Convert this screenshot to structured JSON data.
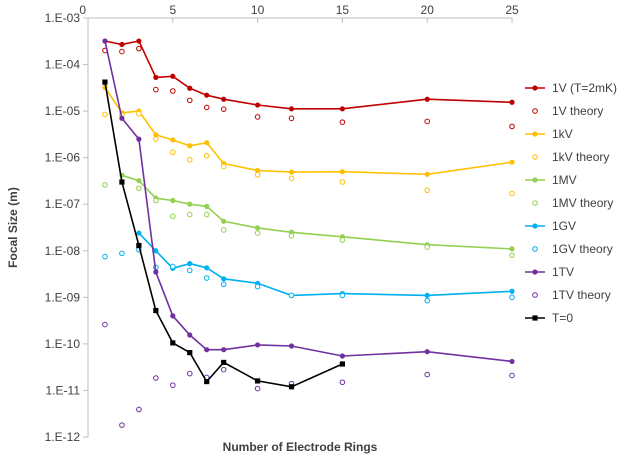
{
  "chart_data": {
    "type": "line",
    "title": "",
    "xlabel": "Number of Electrode Rings",
    "ylabel": "Focal Size (m)",
    "x_ticks": [
      "0",
      "5",
      "10",
      "15",
      "20",
      "25"
    ],
    "y_ticks": [
      "1.E-03",
      "1.E-04",
      "1.E-05",
      "1.E-06",
      "1.E-07",
      "1.E-08",
      "1.E-09",
      "1.E-10",
      "1.E-11",
      "1.E-12"
    ],
    "xlim": [
      0,
      25
    ],
    "ylim_log10": [
      -12,
      -3
    ],
    "y_scale": "log",
    "x_axis_position": "top",
    "grid": false,
    "legend_position": "right",
    "series": [
      {
        "name": "1V (T=2mK)",
        "color": "#C00000",
        "style": "line-filled",
        "x": [
          1,
          2,
          3,
          4,
          5,
          6,
          7,
          8,
          10,
          12,
          15,
          20,
          25
        ],
        "y": [
          0.00032,
          0.00027,
          0.00032,
          5.3e-05,
          5.6e-05,
          3.1e-05,
          2.2e-05,
          1.8e-05,
          1.35e-05,
          1.12e-05,
          1.12e-05,
          1.8e-05,
          1.55e-05
        ]
      },
      {
        "name": "1V theory",
        "color": "#C00000",
        "style": "marker-hollow",
        "x": [
          1,
          2,
          3,
          4,
          5,
          6,
          7,
          8,
          10,
          12,
          15,
          20,
          25
        ],
        "y": [
          0.0002,
          0.00019,
          0.00022,
          2.9e-05,
          2.7e-05,
          1.7e-05,
          1.2e-05,
          1.1e-05,
          7.5e-06,
          7e-06,
          5.8e-06,
          6e-06,
          4.7e-06
        ]
      },
      {
        "name": "1kV",
        "color": "#FFC000",
        "style": "line-filled",
        "x": [
          1,
          2,
          3,
          4,
          5,
          6,
          7,
          8,
          10,
          12,
          15,
          20,
          25
        ],
        "y": [
          3.2e-05,
          9.2e-06,
          1e-05,
          3.1e-06,
          2.4e-06,
          1.8e-06,
          2.1e-06,
          7.5e-07,
          5.3e-07,
          4.9e-07,
          5e-07,
          4.4e-07,
          8e-07
        ]
      },
      {
        "name": "1kV theory",
        "color": "#FFC000",
        "style": "marker-hollow",
        "x": [
          1,
          2,
          3,
          4,
          5,
          6,
          7,
          8,
          10,
          12,
          15,
          20,
          25
        ],
        "y": [
          8.5e-06,
          8.3e-06,
          8.8e-06,
          2.5e-06,
          1.3e-06,
          9e-07,
          1.1e-06,
          6.5e-07,
          4.3e-07,
          3.6e-07,
          3e-07,
          2e-07,
          1.7e-07
        ]
      },
      {
        "name": "1MV",
        "color": "#92D050",
        "style": "line-filled",
        "x": [
          2,
          3,
          4,
          5,
          6,
          7,
          8,
          10,
          12,
          15,
          20,
          25
        ],
        "y": [
          4.2e-07,
          3.2e-07,
          1.35e-07,
          1.2e-07,
          1e-07,
          9e-08,
          4.3e-08,
          3.1e-08,
          2.5e-08,
          2e-08,
          1.35e-08,
          1.1e-08
        ]
      },
      {
        "name": "1MV theory",
        "color": "#92D050",
        "style": "marker-hollow",
        "x": [
          1,
          3,
          4,
          5,
          6,
          7,
          8,
          10,
          12,
          15,
          20,
          25
        ],
        "y": [
          2.6e-07,
          2.2e-07,
          1.2e-07,
          5.5e-08,
          6e-08,
          6e-08,
          2.8e-08,
          2.4e-08,
          2.1e-08,
          1.7e-08,
          1.2e-08,
          8e-09
        ]
      },
      {
        "name": "1GV",
        "color": "#00B0F0",
        "style": "line-filled",
        "x": [
          3,
          4,
          5,
          6,
          7,
          8,
          10,
          12,
          15,
          20,
          25
        ],
        "y": [
          2.4e-08,
          1e-08,
          4.2e-09,
          5.3e-09,
          4.3e-09,
          2.5e-09,
          2e-09,
          1.1e-09,
          1.2e-09,
          1.1e-09,
          1.35e-09
        ]
      },
      {
        "name": "1GV theory",
        "color": "#00B0F0",
        "style": "marker-hollow",
        "x": [
          1,
          2,
          3,
          4,
          5,
          6,
          7,
          8,
          10,
          12,
          15,
          20,
          25
        ],
        "y": [
          7.5e-09,
          8.8e-09,
          1.05e-08,
          4.4e-09,
          4.6e-09,
          3.8e-09,
          2.6e-09,
          1.9e-09,
          1.7e-09,
          1.1e-09,
          1.1e-09,
          8.5e-10,
          1e-09
        ]
      },
      {
        "name": "1TV",
        "color": "#7030A0",
        "style": "line-filled",
        "x": [
          1,
          2,
          3,
          4,
          5,
          6,
          7,
          8,
          10,
          12,
          15,
          20,
          25
        ],
        "y": [
          0.00032,
          7e-06,
          2.5e-06,
          3.5e-09,
          4e-10,
          1.55e-10,
          7.5e-11,
          7.5e-11,
          9.5e-11,
          9e-11,
          5.5e-11,
          6.8e-11,
          4.2e-11
        ]
      },
      {
        "name": "1TV theory",
        "color": "#7030A0",
        "style": "marker-hollow",
        "x": [
          1,
          2,
          3,
          4,
          5,
          6,
          7,
          8,
          10,
          12,
          15,
          20,
          25
        ],
        "y": [
          2.6e-10,
          1.8e-12,
          3.9e-12,
          1.85e-11,
          1.3e-11,
          2.3e-11,
          1.9e-11,
          2.8e-11,
          1.1e-11,
          1.4e-11,
          1.5e-11,
          2.2e-11,
          2.1e-11
        ]
      },
      {
        "name": "T=0",
        "color": "#000000",
        "style": "line-square",
        "x": [
          1,
          2,
          3,
          4,
          5,
          6,
          7,
          8,
          10,
          12,
          15
        ],
        "y": [
          4.2e-05,
          3e-07,
          1.3e-08,
          5.2e-10,
          1.05e-10,
          6.5e-11,
          1.55e-11,
          4e-11,
          1.6e-11,
          1.2e-11,
          3.7e-11
        ]
      }
    ]
  }
}
